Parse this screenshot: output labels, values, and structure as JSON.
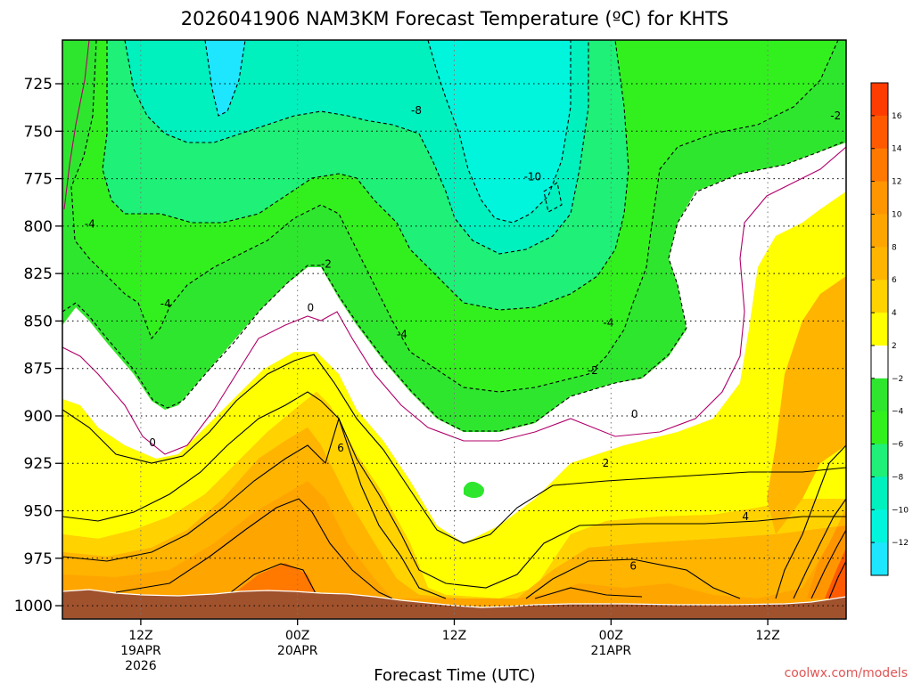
{
  "chart_data": {
    "type": "heatmap",
    "title": "2026041906 NAM3KM Forecast Temperature (ºC) for KHTS",
    "xlabel": "Forecast Time (UTC)",
    "ylabel": "",
    "credit": "coolwx.com/models",
    "y_axis": {
      "unit": "hPa",
      "ticks": [
        725,
        750,
        775,
        800,
        825,
        850,
        875,
        900,
        925,
        950,
        975,
        1000
      ],
      "ylim": [
        1007,
        702
      ],
      "inverted": true,
      "gridlines": true
    },
    "x_axis": {
      "unit": "hours from 2026-04-19 06Z",
      "xlim": [
        0,
        60
      ],
      "gridlines": true,
      "ticks": [
        {
          "h": 6,
          "lines": [
            "12Z",
            "19APR",
            "2026"
          ]
        },
        {
          "h": 18,
          "lines": [
            "00Z",
            "20APR"
          ]
        },
        {
          "h": 30,
          "lines": [
            "12Z"
          ]
        },
        {
          "h": 42,
          "lines": [
            "00Z",
            "21APR"
          ]
        },
        {
          "h": 54,
          "lines": [
            "12Z"
          ]
        }
      ]
    },
    "colorbar": {
      "labels": [
        16,
        14,
        12,
        10,
        8,
        6,
        4,
        2,
        -2,
        -4,
        -6,
        -8,
        -10,
        -12
      ],
      "bands": [
        {
          "lo": 16,
          "hi": 18,
          "color": "#ff3c00"
        },
        {
          "lo": 14,
          "hi": 16,
          "color": "#ff5a00"
        },
        {
          "lo": 12,
          "hi": 14,
          "color": "#ff7800"
        },
        {
          "lo": 10,
          "hi": 12,
          "color": "#ff9600"
        },
        {
          "lo": 8,
          "hi": 10,
          "color": "#ffa500"
        },
        {
          "lo": 6,
          "hi": 8,
          "color": "#ffb400"
        },
        {
          "lo": 4,
          "hi": 6,
          "color": "#ffd200"
        },
        {
          "lo": 2,
          "hi": 4,
          "color": "#ffff00"
        },
        {
          "lo": -2,
          "hi": 2,
          "color": "#ffffff"
        },
        {
          "lo": -4,
          "hi": -2,
          "color": "#2fe62f"
        },
        {
          "lo": -6,
          "hi": -4,
          "color": "#32f01e"
        },
        {
          "lo": -8,
          "hi": -6,
          "color": "#1ef078"
        },
        {
          "lo": -10,
          "hi": -8,
          "color": "#00f0be"
        },
        {
          "lo": -12,
          "hi": -10,
          "color": "#00f5dc"
        },
        {
          "lo": -14,
          "hi": -12,
          "color": "#1ee6ff"
        }
      ]
    },
    "terrain_color": "#a0522d",
    "contour_colors": {
      "zero": "#b0006a",
      "positive": "#000000",
      "negative": "#000000"
    },
    "contour_labels": [
      {
        "text": "-10",
        "h": 36.0,
        "p": 774
      },
      {
        "text": "-8",
        "h": 27.1,
        "p": 739
      },
      {
        "text": "-4",
        "h": 2.1,
        "p": 799
      },
      {
        "text": "-4",
        "h": 7.9,
        "p": 841
      },
      {
        "text": "-4",
        "h": 26.0,
        "p": 857
      },
      {
        "text": "-4",
        "h": 41.8,
        "p": 851
      },
      {
        "text": "-2",
        "h": 20.2,
        "p": 820
      },
      {
        "text": "-2",
        "h": 59.2,
        "p": 742
      },
      {
        "text": "-2",
        "h": 40.6,
        "p": 876
      },
      {
        "text": "0",
        "h": 19.0,
        "p": 843
      },
      {
        "text": "0",
        "h": 6.9,
        "p": 914
      },
      {
        "text": "0",
        "h": 43.8,
        "p": 899
      },
      {
        "text": "2",
        "h": 41.6,
        "p": 925
      },
      {
        "text": "4",
        "h": 52.3,
        "p": 953
      },
      {
        "text": "6",
        "h": 21.3,
        "p": 917
      },
      {
        "text": "6",
        "h": 43.7,
        "p": 979
      }
    ]
  }
}
